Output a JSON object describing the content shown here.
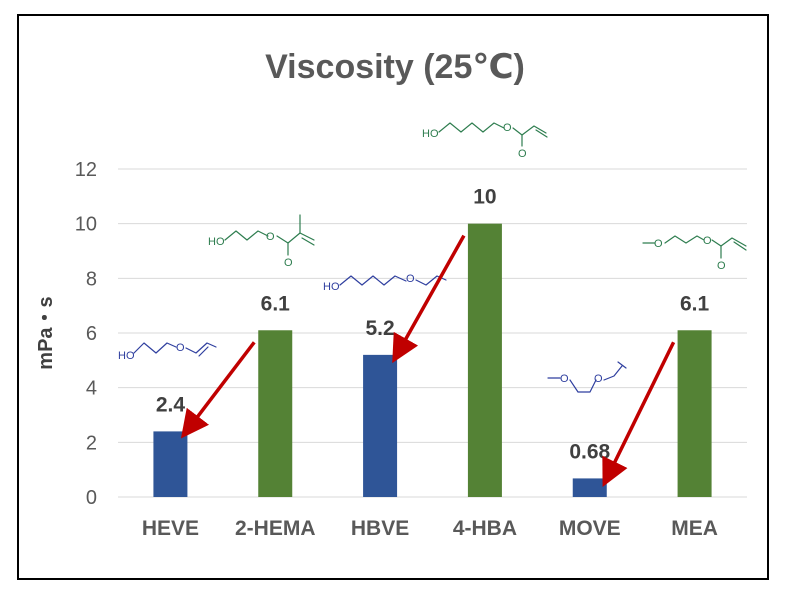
{
  "chart_data": {
    "type": "bar",
    "title": "Viscosity (25℃)",
    "ylabel": "mPa・s",
    "xlabel": "",
    "ylim": [
      0,
      12
    ],
    "yticks": [
      0,
      2,
      4,
      6,
      8,
      10,
      12
    ],
    "grid": true,
    "legend": "none",
    "categories": [
      "HEVE",
      "2-HEMA",
      "HBVE",
      "4-HBA",
      "MOVE",
      "MEA"
    ],
    "values": [
      2.4,
      6.1,
      5.2,
      10,
      0.68,
      6.1
    ],
    "data_labels": [
      "2.4",
      "6.1",
      "5.2",
      "10",
      "0.68",
      "6.1"
    ],
    "bar_colors": [
      "#2f5597",
      "#548235",
      "#2f5597",
      "#548235",
      "#2f5597",
      "#548235"
    ],
    "annotations": [
      {
        "type": "arrow",
        "color": "#c00000",
        "from_category": "2-HEMA",
        "to_category": "HEVE"
      },
      {
        "type": "arrow",
        "color": "#c00000",
        "from_category": "4-HBA",
        "to_category": "HBVE"
      },
      {
        "type": "arrow",
        "color": "#c00000",
        "from_category": "MEA",
        "to_category": "MOVE"
      },
      {
        "type": "structure",
        "category": "HEVE",
        "color": "#2f3f9f",
        "text": "HO"
      },
      {
        "type": "structure",
        "category": "2-HEMA",
        "color": "#2e7d4f",
        "text": "HO"
      },
      {
        "type": "structure",
        "category": "HBVE",
        "color": "#2f3f9f",
        "text": "HO"
      },
      {
        "type": "structure",
        "category": "4-HBA",
        "color": "#2e7d4f",
        "text": "HO"
      },
      {
        "type": "structure",
        "category": "MOVE",
        "color": "#2f3f9f",
        "text": ""
      },
      {
        "type": "structure",
        "category": "MEA",
        "color": "#2e7d4f",
        "text": ""
      }
    ]
  }
}
